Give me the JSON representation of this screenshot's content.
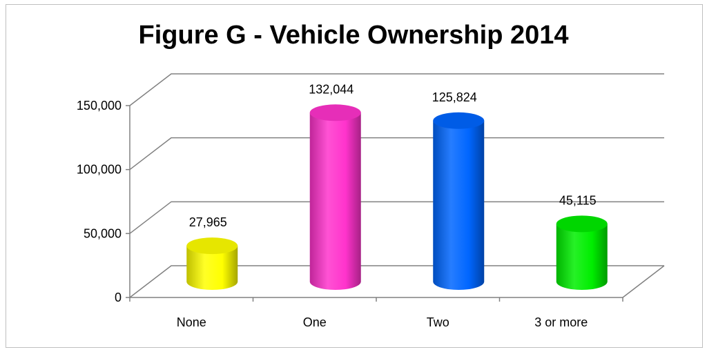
{
  "chart_data": {
    "type": "bar",
    "title": "Figure G - Vehicle Ownership 2014",
    "categories": [
      "None",
      "One",
      "Two",
      "3 or more"
    ],
    "values": [
      27965,
      132044,
      125824,
      45115
    ],
    "data_labels": [
      "27,965",
      "132,044",
      "125,824",
      "45,115"
    ],
    "y_ticks": [
      0,
      50000,
      100000,
      150000
    ],
    "y_tick_labels": [
      "0",
      "50,000",
      "100,000",
      "150,000"
    ],
    "ylim": [
      0,
      150000
    ],
    "xlabel": "",
    "ylabel": "",
    "grid": true,
    "legend": "none",
    "style": "3d-cylinder",
    "colors": [
      "#ffff00",
      "#ff33cc",
      "#0066ff",
      "#00ee00"
    ]
  }
}
